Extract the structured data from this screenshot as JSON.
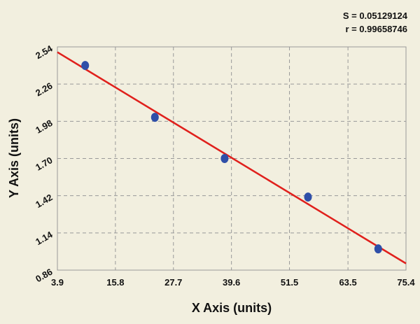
{
  "chart_data": {
    "type": "scatter",
    "annotations": [
      "S = 0.05129124",
      "r = 0.99658746"
    ],
    "xlabel": "X Axis (units)",
    "ylabel": "Y Axis (units)",
    "xlim": [
      3.9,
      75.4
    ],
    "xticks": [
      3.9,
      15.8,
      27.7,
      39.6,
      51.5,
      63.5,
      75.4
    ],
    "ylim": [
      0.86,
      2.54
    ],
    "yticks": [
      0.86,
      1.14,
      1.42,
      {
        "value": 1.7,
        "label": "1.70"
      },
      1.98,
      2.26,
      2.54
    ],
    "grid": true,
    "series": [
      {
        "color": "#2f4fa8",
        "x": [
          9.6,
          23.9,
          38.2,
          55.3,
          69.7
        ],
        "values": [
          2.4,
          2.01,
          1.7,
          1.41,
          1.02
        ]
      }
    ],
    "fit_line": {
      "color": "#e0201c",
      "x": [
        3.9,
        75.4
      ],
      "values": [
        2.5,
        0.91
      ]
    }
  }
}
